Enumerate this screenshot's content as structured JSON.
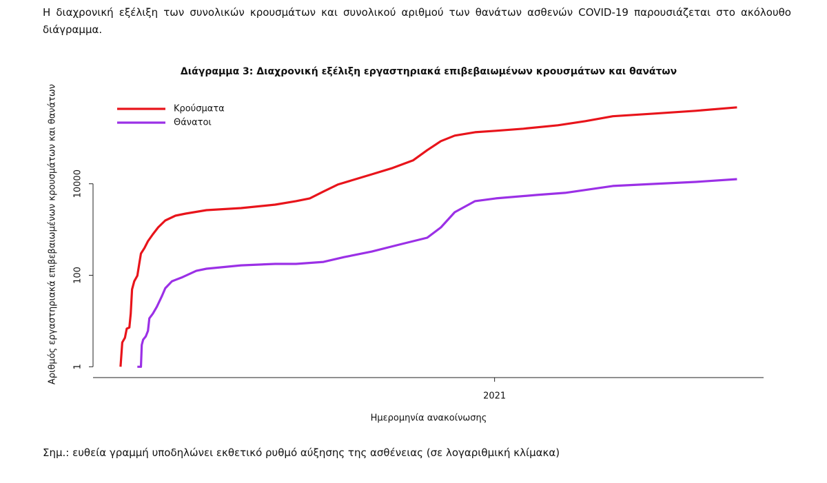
{
  "intro": "Η διαχρονική εξέλιξη των συνολικών κρουσμάτων και συνολικού αριθμού των θανάτων ασθενών COVID-19 παρουσιάζεται στο ακόλουθο διάγραμμα.",
  "note": "Σημ.: ευθεία γραμμή υποδηλώνει εκθετικό ρυθμό αύξησης της ασθένειας (σε λογαριθμική κλίμακα)",
  "chart_data": {
    "type": "line",
    "title": "Διάγραμμα 3: Διαχρονική εξέλιξη εργαστηριακά επιβεβαιωμένων κρουσμάτων και θανάτων",
    "xlabel": "Ημερομηνία ανακοίνωσης",
    "ylabel": "Αριθμός εργαστηριακά επιβεβαιωμένων κρουσμάτων και θανάτων",
    "log_y": true,
    "legend": "top-left",
    "xlim": [
      2020.094,
      2021.607
    ],
    "xticks": [
      2021
    ],
    "ylim": [
      0.58,
      810000
    ],
    "yticks": [
      1,
      100,
      10000
    ],
    "series": [
      {
        "name": "Κρούσματα",
        "color": "#e8141b",
        "x": [
          2020.156,
          2020.16,
          2020.166,
          2020.17,
          2020.176,
          2020.179,
          2020.182,
          2020.187,
          2020.194,
          2020.199,
          2020.202,
          2020.21,
          2020.218,
          2020.229,
          2020.241,
          2020.257,
          2020.28,
          2020.303,
          2020.35,
          2020.428,
          2020.505,
          2020.552,
          2020.583,
          2020.614,
          2020.646,
          2020.677,
          2020.723,
          2020.77,
          2020.816,
          2020.848,
          2020.879,
          2020.91,
          2020.956,
          2021.003,
          2021.065,
          2021.143,
          2021.205,
          2021.267,
          2021.361,
          2021.454,
          2021.547
        ],
        "values": [
          1,
          3.4,
          4.3,
          6.8,
          7.2,
          14.5,
          49,
          74,
          98,
          196,
          298,
          393,
          556,
          787,
          1114,
          1577,
          2011,
          2230,
          2655,
          2945,
          3500,
          4170,
          4790,
          6780,
          9590,
          11800,
          16100,
          22100,
          32400,
          54400,
          85500,
          113000,
          134000,
          144000,
          160000,
          190000,
          234000,
          299000,
          343000,
          394000,
          469000
        ]
      },
      {
        "name": "Θάνατοι",
        "color": "#9b30e6",
        "x": [
          2020.194,
          2020.202,
          2020.204,
          2020.207,
          2020.213,
          2020.218,
          2020.221,
          2020.229,
          2020.238,
          2020.249,
          2020.257,
          2020.272,
          2020.296,
          2020.327,
          2020.35,
          2020.428,
          2020.505,
          2020.552,
          2020.614,
          2020.661,
          2020.723,
          2020.785,
          2020.848,
          2020.879,
          2020.91,
          2020.956,
          2021.003,
          2021.096,
          2021.159,
          2021.267,
          2021.361,
          2021.454,
          2021.547
        ],
        "values": [
          1,
          1,
          3.0,
          3.9,
          4.6,
          6.1,
          11.4,
          14.5,
          20.5,
          34.5,
          52,
          74,
          91,
          125,
          139,
          165,
          177,
          177,
          196,
          250,
          330,
          468,
          662,
          1114,
          2390,
          4170,
          4790,
          5700,
          6320,
          8950,
          9930,
          11000,
          12600
        ]
      }
    ]
  }
}
